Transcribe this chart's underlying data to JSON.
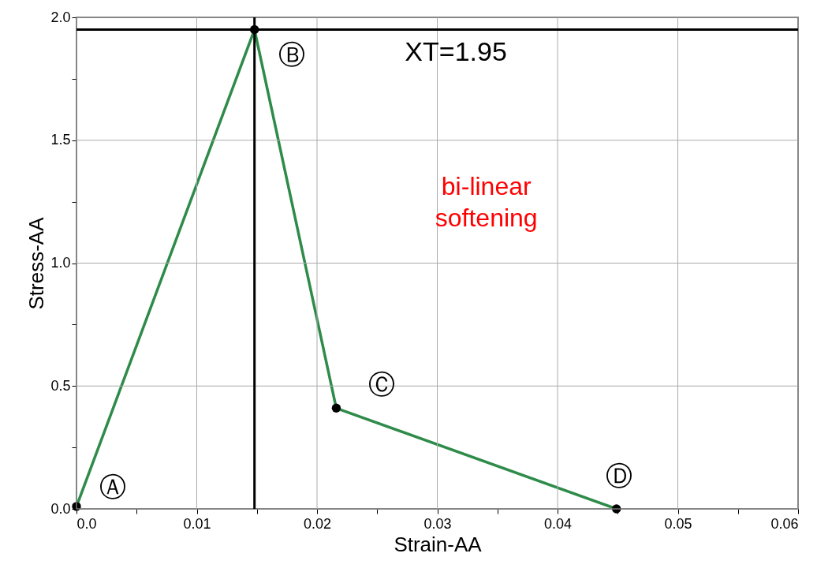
{
  "chart_data": {
    "type": "line",
    "xlabel": "Strain-AA",
    "ylabel": "Stress-AA",
    "x": [
      0,
      0.0148,
      0.0216,
      0.0449
    ],
    "series": [
      {
        "color": "#2e8b4a",
        "values": [
          0.01,
          1.95,
          0.41,
          0
        ]
      }
    ],
    "marker": "circle",
    "line_style": "solid",
    "grid": true,
    "xlim": [
      0,
      0.06
    ],
    "xticks": [
      {
        "value": 0,
        "label": "0.0"
      },
      {
        "value": 0.005,
        "label": null
      },
      0.01,
      {
        "value": 0.015,
        "label": null
      },
      0.02,
      {
        "value": 0.025,
        "label": null
      },
      0.03,
      {
        "value": 0.035,
        "label": null
      },
      0.04,
      {
        "value": 0.045,
        "label": null
      },
      0.05,
      {
        "value": 0.055,
        "label": null
      },
      0.06
    ],
    "ylim": [
      0,
      2.0
    ],
    "yticks": [
      {
        "value": 0,
        "label": "0.0"
      },
      {
        "value": 0.25,
        "label": null
      },
      {
        "value": 0.5,
        "label": "0.5"
      },
      {
        "value": 0.75,
        "label": null
      },
      {
        "value": 1,
        "label": "1.0"
      },
      {
        "value": 1.25,
        "label": null
      },
      {
        "value": 1.5,
        "label": "1.5"
      },
      {
        "value": 1.75,
        "label": null
      },
      {
        "value": 2,
        "label": "2.0"
      }
    ],
    "ref_lines": [
      {
        "axis": "y",
        "value": 1.95,
        "label": "XT=1.95",
        "color": "#000000"
      },
      {
        "axis": "x",
        "value": 0.0148,
        "color": "#000000"
      }
    ],
    "annotations": [
      {
        "text": "Ⓐ",
        "x": 0,
        "y": 0.01
      },
      {
        "text": "Ⓑ",
        "x": 0.0148,
        "y": 1.95
      },
      {
        "text": "Ⓒ",
        "x": 0.0216,
        "y": 0.41
      },
      {
        "text": "Ⓓ",
        "x": 0.0449,
        "y": 0
      },
      "bi-linear\nsoftening"
    ]
  }
}
